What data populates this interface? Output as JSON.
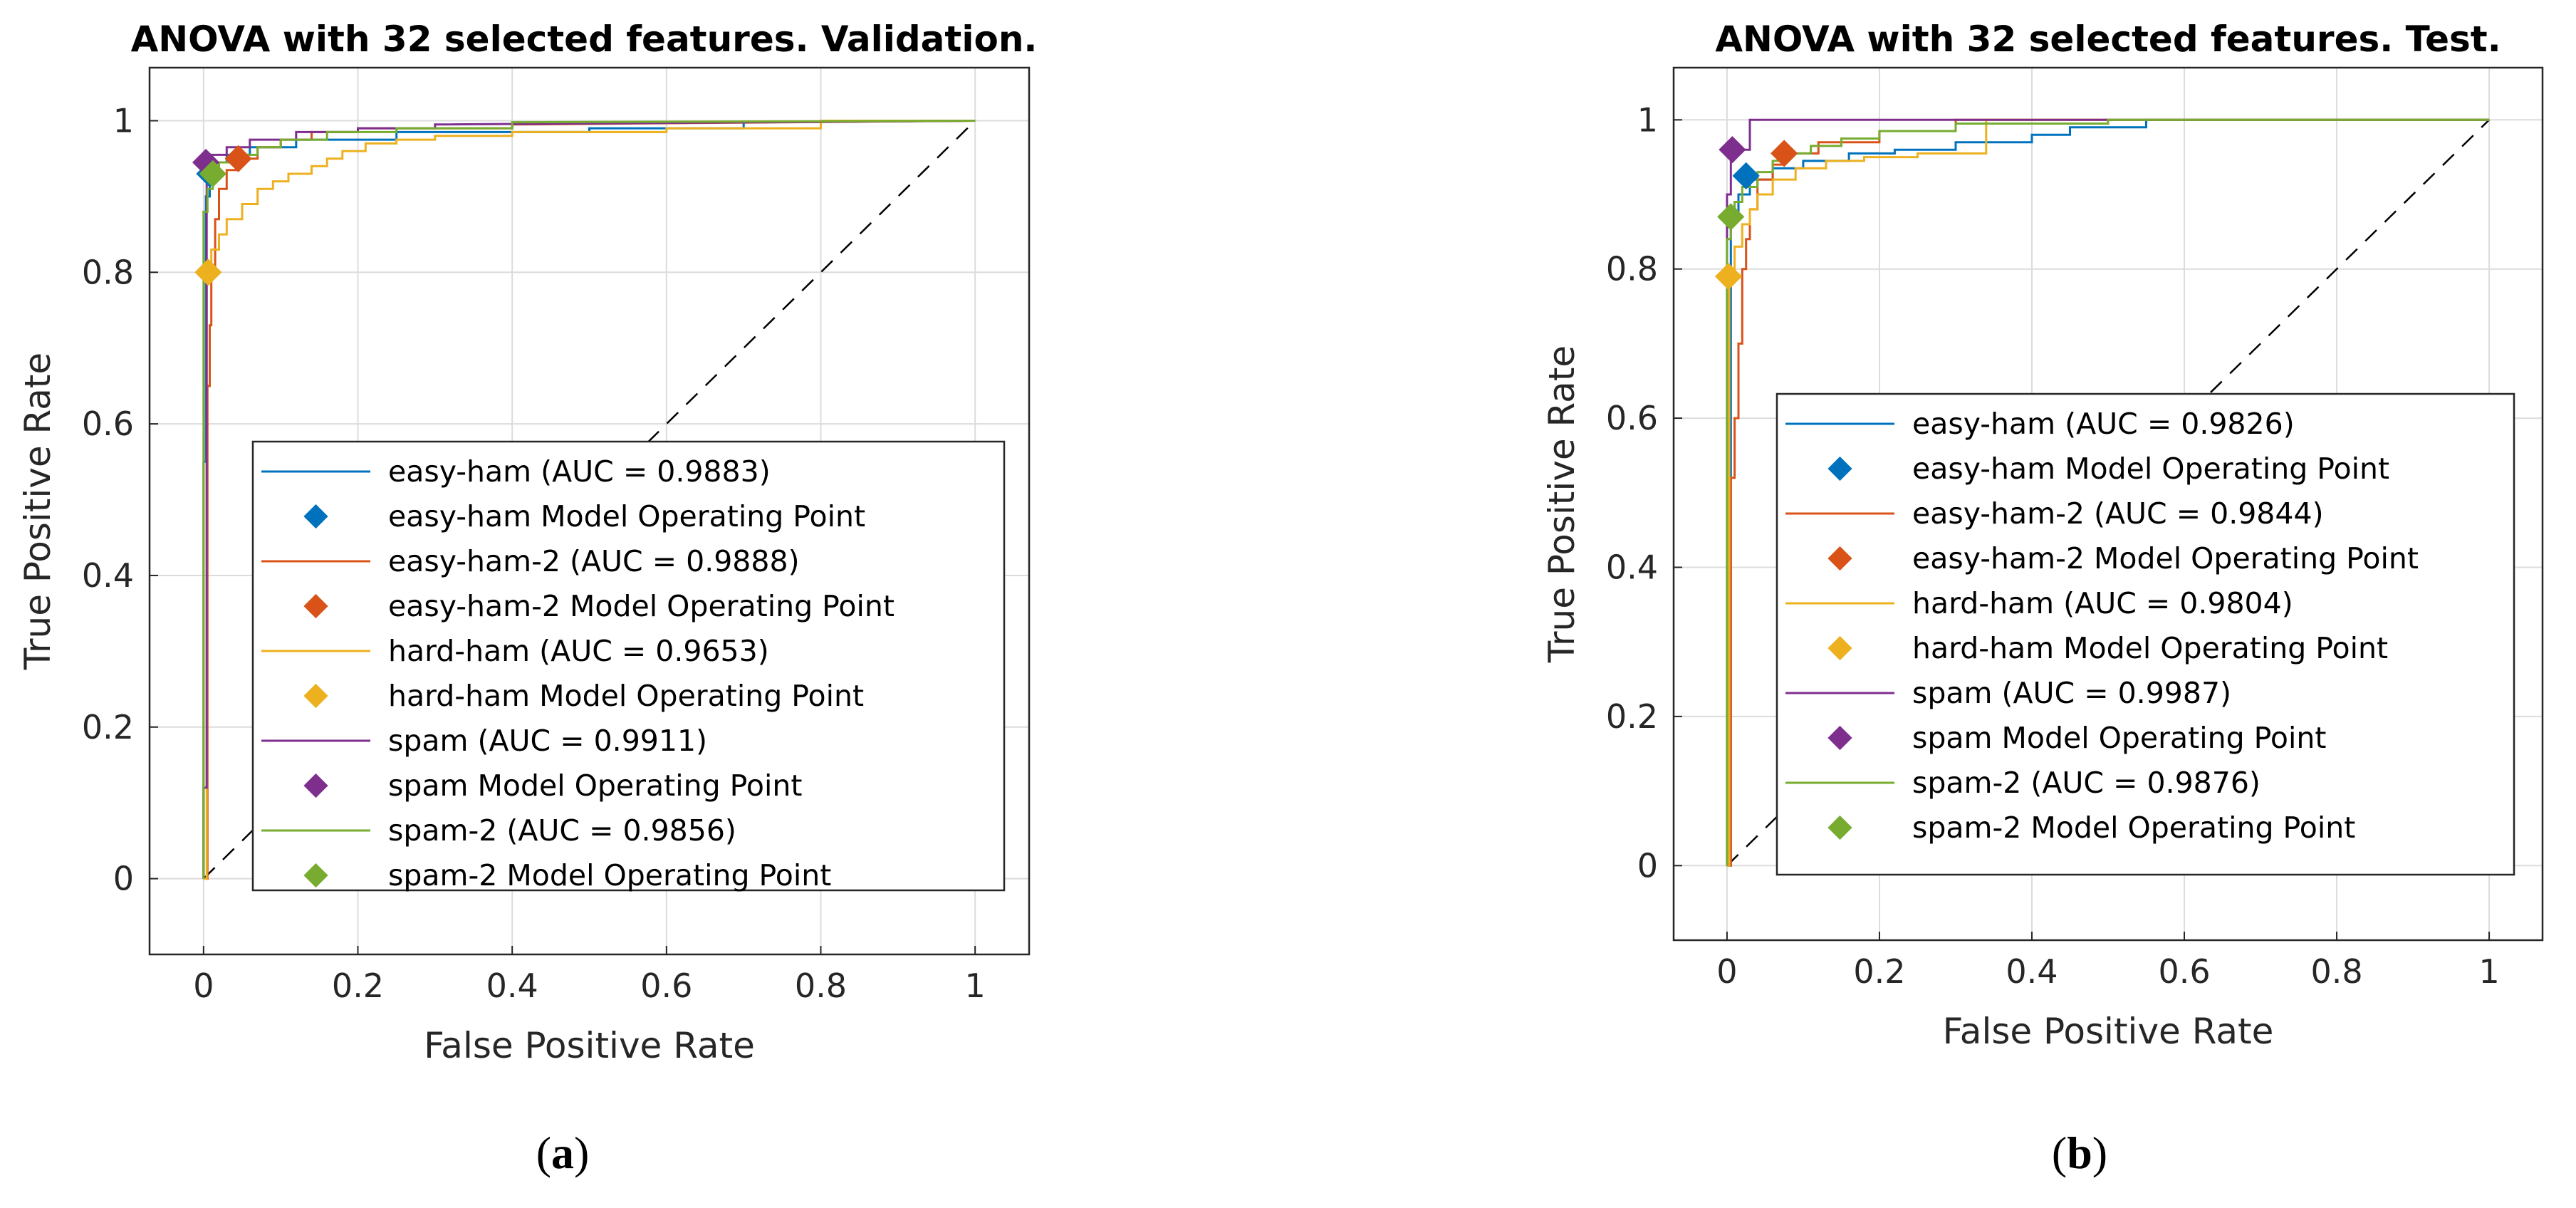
{
  "chart_data": [
    {
      "type": "line",
      "panel_label": "a",
      "title": "ANOVA with 32 selected features.  Validation.",
      "xlabel": "False Positive Rate",
      "ylabel": "True Positive Rate",
      "xlim": [
        -0.07,
        1.07
      ],
      "ylim": [
        -0.1,
        1.07
      ],
      "xticks": [
        "0",
        "0.2",
        "0.4",
        "0.6",
        "0.8",
        "1"
      ],
      "yticks": [
        "0",
        "0.2",
        "0.4",
        "0.6",
        "0.8",
        "1"
      ],
      "grid": true,
      "legend_position": "bottom-right",
      "series": [
        {
          "name": "easy-ham (AUC = 0.9883)",
          "color": "#0072BD",
          "x": [
            0,
            0,
            0.003,
            0.003,
            0.008,
            0.008,
            0.015,
            0.015,
            0.03,
            0.03,
            0.06,
            0.06,
            0.12,
            0.12,
            0.25,
            0.25,
            0.5,
            0.5,
            0.7,
            0.7,
            1
          ],
          "y": [
            0,
            0.55,
            0.55,
            0.9,
            0.9,
            0.93,
            0.93,
            0.945,
            0.945,
            0.955,
            0.955,
            0.965,
            0.965,
            0.975,
            0.975,
            0.985,
            0.985,
            0.99,
            0.99,
            0.998,
            1
          ]
        },
        {
          "name": "easy-ham Model Operating Point",
          "color": "#0072BD",
          "marker": true,
          "x": [
            0.008
          ],
          "y": [
            0.93
          ]
        },
        {
          "name": "easy-ham-2 (AUC = 0.9888)",
          "color": "#D95319",
          "x": [
            0,
            0.005,
            0.005,
            0.008,
            0.008,
            0.01,
            0.01,
            0.015,
            0.015,
            0.02,
            0.02,
            0.03,
            0.03,
            0.045,
            0.045,
            0.07,
            0.07,
            0.1,
            0.1,
            0.14,
            0.14,
            0.2,
            0.2,
            0.4,
            0.4,
            1
          ],
          "y": [
            0,
            0,
            0.65,
            0.65,
            0.73,
            0.73,
            0.8,
            0.8,
            0.87,
            0.87,
            0.91,
            0.91,
            0.935,
            0.935,
            0.95,
            0.95,
            0.965,
            0.965,
            0.975,
            0.975,
            0.985,
            0.985,
            0.99,
            0.99,
            0.995,
            1
          ]
        },
        {
          "name": "easy-ham-2 Model Operating Point",
          "color": "#D95319",
          "marker": true,
          "x": [
            0.045
          ],
          "y": [
            0.95
          ]
        },
        {
          "name": "hard-ham (AUC = 0.9653)",
          "color": "#EDB120",
          "x": [
            0,
            0.004,
            0.004,
            0.01,
            0.01,
            0.02,
            0.02,
            0.03,
            0.03,
            0.05,
            0.05,
            0.07,
            0.07,
            0.09,
            0.09,
            0.11,
            0.11,
            0.14,
            0.14,
            0.16,
            0.16,
            0.18,
            0.18,
            0.21,
            0.21,
            0.25,
            0.25,
            0.3,
            0.3,
            0.4,
            0.4,
            0.6,
            0.6,
            0.8,
            0.8,
            1
          ],
          "y": [
            0,
            0,
            0.8,
            0.8,
            0.83,
            0.83,
            0.85,
            0.85,
            0.87,
            0.87,
            0.89,
            0.89,
            0.91,
            0.91,
            0.92,
            0.92,
            0.93,
            0.93,
            0.94,
            0.94,
            0.95,
            0.95,
            0.96,
            0.96,
            0.97,
            0.97,
            0.975,
            0.975,
            0.98,
            0.98,
            0.985,
            0.985,
            0.99,
            0.99,
            1,
            1
          ]
        },
        {
          "name": "hard-ham Model Operating Point",
          "color": "#EDB120",
          "marker": true,
          "x": [
            0.006
          ],
          "y": [
            0.8
          ]
        },
        {
          "name": "spam (AUC = 0.9911)",
          "color": "#7E2F8E",
          "x": [
            0,
            0,
            0.004,
            0.004,
            0.01,
            0.01,
            0.03,
            0.03,
            0.06,
            0.06,
            0.12,
            0.12,
            0.2,
            0.2,
            0.3,
            0.3,
            1
          ],
          "y": [
            0,
            0.12,
            0.12,
            0.945,
            0.945,
            0.955,
            0.955,
            0.965,
            0.965,
            0.975,
            0.975,
            0.985,
            0.985,
            0.99,
            0.99,
            0.995,
            1
          ]
        },
        {
          "name": "spam Model Operating Point",
          "color": "#7E2F8E",
          "marker": true,
          "x": [
            0.003
          ],
          "y": [
            0.945
          ]
        },
        {
          "name": "spam-2 (AUC = 0.9856)",
          "color": "#77AC30",
          "x": [
            0,
            0,
            0.005,
            0.005,
            0.012,
            0.012,
            0.02,
            0.02,
            0.04,
            0.04,
            0.07,
            0.07,
            0.1,
            0.1,
            0.16,
            0.16,
            0.25,
            0.25,
            0.4,
            0.4,
            1
          ],
          "y": [
            0,
            0.88,
            0.88,
            0.91,
            0.91,
            0.93,
            0.93,
            0.945,
            0.945,
            0.955,
            0.955,
            0.965,
            0.965,
            0.975,
            0.975,
            0.985,
            0.985,
            0.99,
            0.99,
            0.998,
            1
          ]
        },
        {
          "name": "spam-2 Model Operating Point",
          "color": "#77AC30",
          "marker": true,
          "x": [
            0.012
          ],
          "y": [
            0.93
          ]
        }
      ]
    },
    {
      "type": "line",
      "panel_label": "b",
      "title": "ANOVA with 32 selected features. Test.",
      "xlabel": "False Positive Rate",
      "ylabel": "True Positive Rate",
      "xlim": [
        -0.07,
        1.07
      ],
      "ylim": [
        -0.1,
        1.07
      ],
      "xticks": [
        "0",
        "0.2",
        "0.4",
        "0.6",
        "0.8",
        "1"
      ],
      "yticks": [
        "0",
        "0.2",
        "0.4",
        "0.6",
        "0.8",
        "1"
      ],
      "grid": true,
      "legend_position": "bottom-right",
      "series": [
        {
          "name": "easy-ham (AUC = 0.9826)",
          "color": "#0072BD",
          "x": [
            0,
            0.005,
            0.005,
            0.015,
            0.015,
            0.03,
            0.03,
            0.06,
            0.06,
            0.1,
            0.1,
            0.16,
            0.16,
            0.22,
            0.22,
            0.3,
            0.3,
            0.4,
            0.4,
            0.45,
            0.45,
            0.55,
            0.55,
            1
          ],
          "y": [
            0,
            0,
            0.87,
            0.87,
            0.9,
            0.9,
            0.92,
            0.92,
            0.935,
            0.935,
            0.945,
            0.945,
            0.955,
            0.955,
            0.96,
            0.96,
            0.97,
            0.97,
            0.98,
            0.98,
            0.99,
            0.99,
            1,
            1
          ]
        },
        {
          "name": "easy-ham Model Operating Point",
          "color": "#0072BD",
          "marker": true,
          "x": [
            0.025
          ],
          "y": [
            0.925
          ]
        },
        {
          "name": "easy-ham-2 (AUC = 0.9844)",
          "color": "#D95319",
          "x": [
            0,
            0.005,
            0.005,
            0.01,
            0.01,
            0.015,
            0.015,
            0.02,
            0.02,
            0.025,
            0.025,
            0.03,
            0.03,
            0.04,
            0.04,
            0.06,
            0.06,
            0.075,
            0.075,
            0.12,
            0.12,
            0.2,
            0.2,
            0.3,
            0.3,
            1
          ],
          "y": [
            0,
            0,
            0.52,
            0.52,
            0.6,
            0.6,
            0.7,
            0.7,
            0.8,
            0.8,
            0.84,
            0.84,
            0.88,
            0.88,
            0.92,
            0.92,
            0.94,
            0.94,
            0.955,
            0.955,
            0.97,
            0.97,
            0.985,
            0.985,
            1,
            1
          ]
        },
        {
          "name": "easy-ham-2 Model Operating Point",
          "color": "#D95319",
          "marker": true,
          "x": [
            0.075
          ],
          "y": [
            0.955
          ]
        },
        {
          "name": "hard-ham (AUC = 0.9804)",
          "color": "#EDB120",
          "x": [
            0,
            0.003,
            0.003,
            0.01,
            0.01,
            0.02,
            0.02,
            0.03,
            0.03,
            0.04,
            0.04,
            0.06,
            0.06,
            0.09,
            0.09,
            0.13,
            0.13,
            0.18,
            0.18,
            0.25,
            0.25,
            0.34,
            0.34,
            1
          ],
          "y": [
            0,
            0,
            0.79,
            0.79,
            0.83,
            0.83,
            0.86,
            0.86,
            0.88,
            0.88,
            0.9,
            0.9,
            0.92,
            0.92,
            0.935,
            0.935,
            0.945,
            0.945,
            0.95,
            0.95,
            0.955,
            0.955,
            1,
            1
          ]
        },
        {
          "name": "hard-ham Model Operating Point",
          "color": "#EDB120",
          "marker": true,
          "x": [
            0.002
          ],
          "y": [
            0.79
          ]
        },
        {
          "name": "spam (AUC = 0.9987)",
          "color": "#7E2F8E",
          "x": [
            0,
            0,
            0.005,
            0.005,
            0.03,
            0.03,
            0.3,
            1
          ],
          "y": [
            0,
            0.9,
            0.9,
            0.96,
            0.96,
            1,
            1,
            1
          ]
        },
        {
          "name": "spam Model Operating Point",
          "color": "#7E2F8E",
          "marker": true,
          "x": [
            0.007
          ],
          "y": [
            0.96
          ]
        },
        {
          "name": "spam-2 (AUC = 0.9876)",
          "color": "#77AC30",
          "x": [
            0,
            0,
            0.005,
            0.005,
            0.01,
            0.01,
            0.02,
            0.02,
            0.04,
            0.04,
            0.06,
            0.06,
            0.08,
            0.08,
            0.11,
            0.11,
            0.15,
            0.15,
            0.2,
            0.2,
            0.3,
            0.3,
            0.5,
            0.5,
            1
          ],
          "y": [
            0,
            0.84,
            0.84,
            0.87,
            0.87,
            0.89,
            0.89,
            0.91,
            0.91,
            0.93,
            0.93,
            0.945,
            0.945,
            0.955,
            0.955,
            0.965,
            0.965,
            0.975,
            0.975,
            0.985,
            0.985,
            0.995,
            0.995,
            1,
            1
          ]
        },
        {
          "name": "spam-2 Model Operating Point",
          "color": "#77AC30",
          "marker": true,
          "x": [
            0.005
          ],
          "y": [
            0.87
          ]
        }
      ]
    }
  ]
}
